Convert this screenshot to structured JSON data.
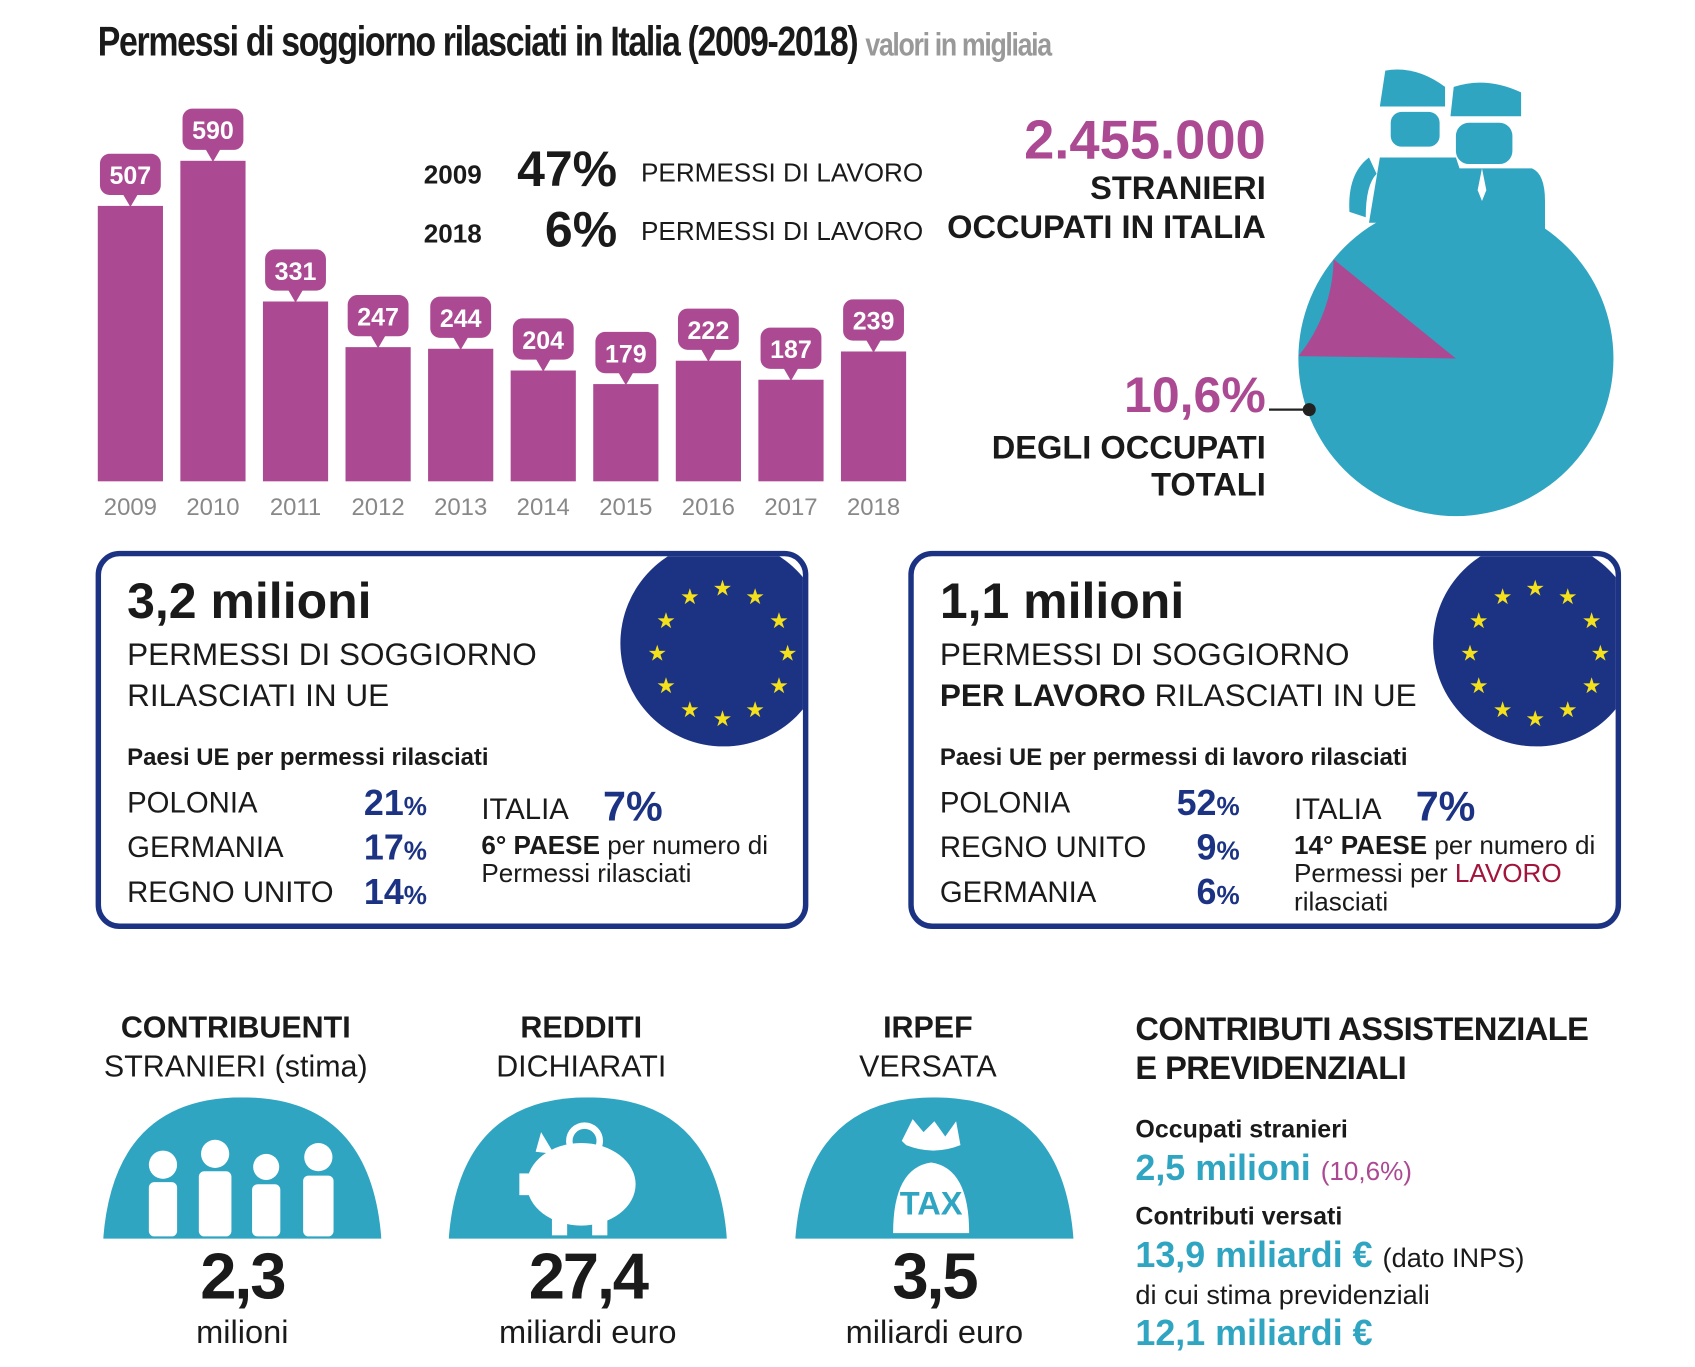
{
  "title": "Permessi di soggiorno rilasciati in Italia (2009-2018)",
  "subtitle": "valori in migliaia",
  "chart_data": {
    "type": "bar",
    "categories": [
      "2009",
      "2010",
      "2011",
      "2012",
      "2013",
      "2014",
      "2015",
      "2016",
      "2017",
      "2018"
    ],
    "values": [
      507,
      590,
      331,
      247,
      244,
      204,
      179,
      222,
      187,
      239
    ],
    "ylim": [
      0,
      600
    ],
    "color": "#ab4a92",
    "grid": false
  },
  "work_permits": [
    {
      "year": "2009",
      "pct": "47%",
      "label": "PERMESSI DI LAVORO"
    },
    {
      "year": "2018",
      "pct": "6%",
      "label": "PERMESSI DI LAVORO"
    }
  ],
  "employed": {
    "value": "2.455.000",
    "line1": "STRANIERI",
    "line2": "OCCUPATI IN ITALIA",
    "share": "10,6%",
    "share_l1": "DEGLI OCCUPATI",
    "share_l2": "TOTALI",
    "pie": {
      "type": "pie",
      "values": [
        10.6,
        89.4
      ],
      "colors": [
        "#ab4a92",
        "#2fa5c2"
      ]
    }
  },
  "box_left": {
    "big": "3,2 milioni",
    "l1": "PERMESSI DI SOGGIORNO",
    "l2": "RILASCIATI IN UE",
    "list_title": "Paesi UE per permessi rilasciati",
    "rows": [
      {
        "c": "POLONIA",
        "v": "21",
        "u": "%"
      },
      {
        "c": "GERMANIA",
        "v": "17",
        "u": "%"
      },
      {
        "c": "REGNO UNITO",
        "v": "14",
        "u": "%"
      }
    ],
    "italy": "ITALIA",
    "italy_pct": "7%",
    "rank": "6° PAESE",
    "rank_rest": " per numero di",
    "rank_l2": "Permessi rilasciati"
  },
  "box_right": {
    "big": "1,1 milioni",
    "l1": "PERMESSI DI SOGGIORNO",
    "l2a": "PER LAVORO",
    "l2b": " RILASCIATI IN UE",
    "list_title": "Paesi UE per permessi di lavoro rilasciati",
    "rows": [
      {
        "c": "POLONIA",
        "v": "52",
        "u": "%"
      },
      {
        "c": "REGNO UNITO",
        "v": "9",
        "u": "%"
      },
      {
        "c": "GERMANIA",
        "v": "6",
        "u": "%"
      }
    ],
    "italy": "ITALIA",
    "italy_pct": "7%",
    "rank": "14° PAESE",
    "rank_rest": " per numero di",
    "rank_l2a": "Permessi per ",
    "rank_l2b": "LAVORO",
    "rank_l3": "rilasciati"
  },
  "bottom": [
    {
      "h1": "CONTRIBUENTI",
      "h2": "STRANIERI (stima)",
      "num": "2,3",
      "unit": "milioni",
      "icon": "people-icon"
    },
    {
      "h1": "REDDITI",
      "h2": "DICHIARATI",
      "num": "27,4",
      "unit": "miliardi euro",
      "icon": "piggy-bank-icon"
    },
    {
      "h1": "IRPEF",
      "h2": "VERSATA",
      "num": "3,5",
      "unit": "miliardi euro",
      "icon": "tax-bag-icon",
      "tax": "TAX"
    }
  ],
  "contrib": {
    "h1": "CONTRIBUTI ASSISTENZIALE",
    "h2": "E PREVIDENZIALI",
    "occ_label": "Occupati stranieri",
    "occ_value": "2,5 milioni",
    "occ_pct": "(10,6%)",
    "vers_label": "Contributi versati",
    "vers_value": "13,9 miliardi €",
    "vers_note": "(dato INPS)",
    "prev_label": "di cui stima previdenziali",
    "prev_value": "12,1 miliardi €"
  },
  "colors": {
    "magenta": "#ab4a92",
    "teal": "#2fa5c2",
    "navy": "#1c3384",
    "star": "#f5e11b"
  }
}
